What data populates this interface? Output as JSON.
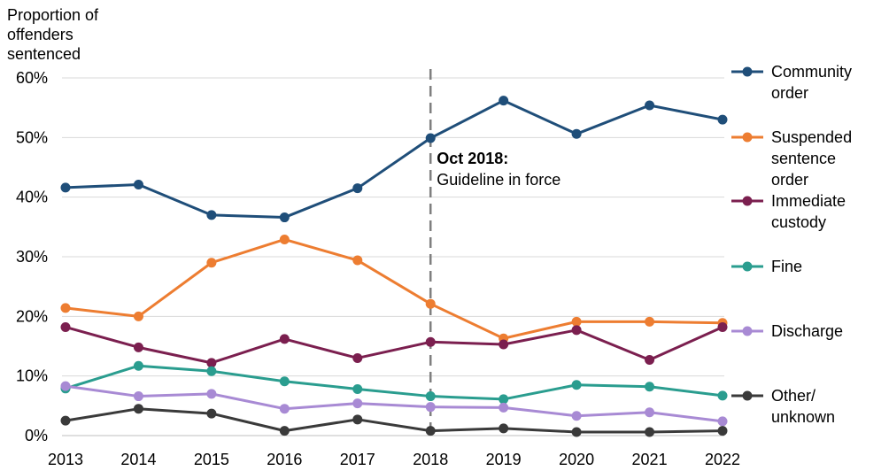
{
  "chart_data": {
    "type": "line",
    "ylabel": [
      "Proportion of",
      "offenders",
      "sentenced"
    ],
    "xlabel": "",
    "categories": [
      "2013",
      "2014",
      "2015",
      "2016",
      "2017",
      "2018",
      "2019",
      "2020",
      "2021",
      "2022"
    ],
    "ylim": [
      0,
      60
    ],
    "yticks": [
      0,
      10,
      20,
      30,
      40,
      50,
      60
    ],
    "ytick_labels": [
      "0%",
      "10%",
      "20%",
      "30%",
      "40%",
      "50%",
      "60%"
    ],
    "grid": true,
    "series": [
      {
        "name": "Community order",
        "legend_lines": [
          "Community",
          "order"
        ],
        "color": "#1f4e79",
        "values": [
          41.6,
          42.1,
          37.0,
          36.6,
          41.5,
          49.9,
          56.2,
          50.6,
          55.4,
          53.0
        ]
      },
      {
        "name": "Suspended sentence order",
        "legend_lines": [
          "Suspended",
          "sentence",
          "order"
        ],
        "color": "#ed7d31",
        "values": [
          21.4,
          20.0,
          29.0,
          32.9,
          29.4,
          22.1,
          16.3,
          19.1,
          19.1,
          18.9
        ]
      },
      {
        "name": "Immediate custody",
        "legend_lines": [
          "Immediate",
          "custody"
        ],
        "color": "#7b1f4f",
        "values": [
          18.2,
          14.8,
          12.2,
          16.2,
          13.0,
          15.7,
          15.3,
          17.7,
          12.7,
          18.2
        ]
      },
      {
        "name": "Fine",
        "legend_lines": [
          "Fine"
        ],
        "color": "#2a9d8f",
        "values": [
          7.9,
          11.7,
          10.8,
          9.1,
          7.8,
          6.6,
          6.1,
          8.5,
          8.2,
          6.7
        ]
      },
      {
        "name": "Discharge",
        "legend_lines": [
          "Discharge"
        ],
        "color": "#a88ad4",
        "values": [
          8.3,
          6.6,
          7.0,
          4.5,
          5.4,
          4.8,
          4.7,
          3.3,
          3.9,
          2.4
        ]
      },
      {
        "name": "Other/ unknown",
        "legend_lines": [
          "Other/",
          "unknown"
        ],
        "color": "#3a3a3a",
        "values": [
          2.5,
          4.5,
          3.7,
          0.8,
          2.7,
          0.8,
          1.2,
          0.6,
          0.6,
          0.8
        ]
      }
    ],
    "annotation": {
      "category": "2018",
      "title": "Oct 2018:",
      "text": "Guideline in force"
    }
  }
}
